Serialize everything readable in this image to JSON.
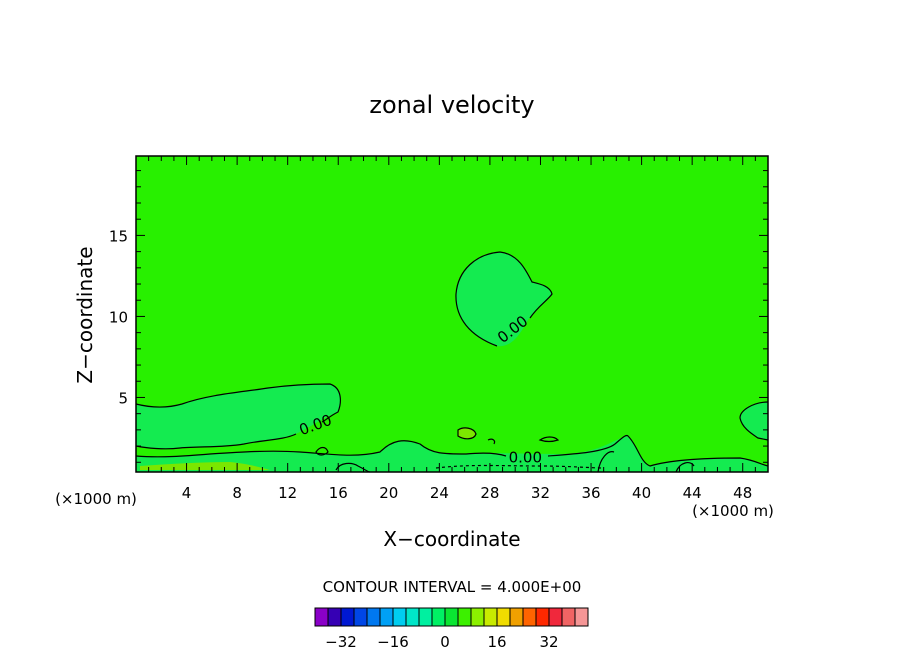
{
  "chart_data": {
    "type": "contour",
    "title": "zonal velocity",
    "xlabel": "X−coordinate",
    "ylabel": "Z−coordinate",
    "x_unit_left": "(×1000 m)",
    "x_unit_right": "(×1000 m)",
    "xlim": [
      0,
      50
    ],
    "ylim": [
      0.4,
      19.9
    ],
    "x_ticks": [
      4,
      8,
      12,
      16,
      20,
      24,
      28,
      32,
      36,
      40,
      44,
      48
    ],
    "y_ticks": [
      5,
      10,
      15
    ],
    "contour_labels": [
      {
        "text": "0.00",
        "x": 29.8,
        "z": 9.2
      },
      {
        "text": "0.00",
        "x": 14.2,
        "z": 3.3
      },
      {
        "text": "0.00",
        "x": 30.8,
        "z": 1.3
      }
    ],
    "contour_interval_text": "CONTOUR INTERVAL = 4.000E+00",
    "colorbar": {
      "levels": [
        -36,
        -32,
        -28,
        -24,
        -20,
        -16,
        -12,
        -8,
        -4,
        0,
        4,
        8,
        12,
        16,
        20,
        24,
        28,
        32,
        36
      ],
      "tick_labels": [
        "−32",
        "−16",
        "0",
        "16",
        "32"
      ],
      "colors": [
        "#8a00c8",
        "#3600b4",
        "#0018d2",
        "#0046e6",
        "#0078f0",
        "#00a0f5",
        "#00cdf0",
        "#00e6c8",
        "#00f0a0",
        "#00f064",
        "#0ae632",
        "#3cf000",
        "#8cf000",
        "#c8eb00",
        "#f0dc00",
        "#f0a000",
        "#ff6400",
        "#ff2800",
        "#f0283c",
        "#f06464",
        "#f59696"
      ]
    },
    "colors": {
      "background_field": "#28f000",
      "zero_band": "#14eb50",
      "positive_band": "#7ce600"
    }
  }
}
